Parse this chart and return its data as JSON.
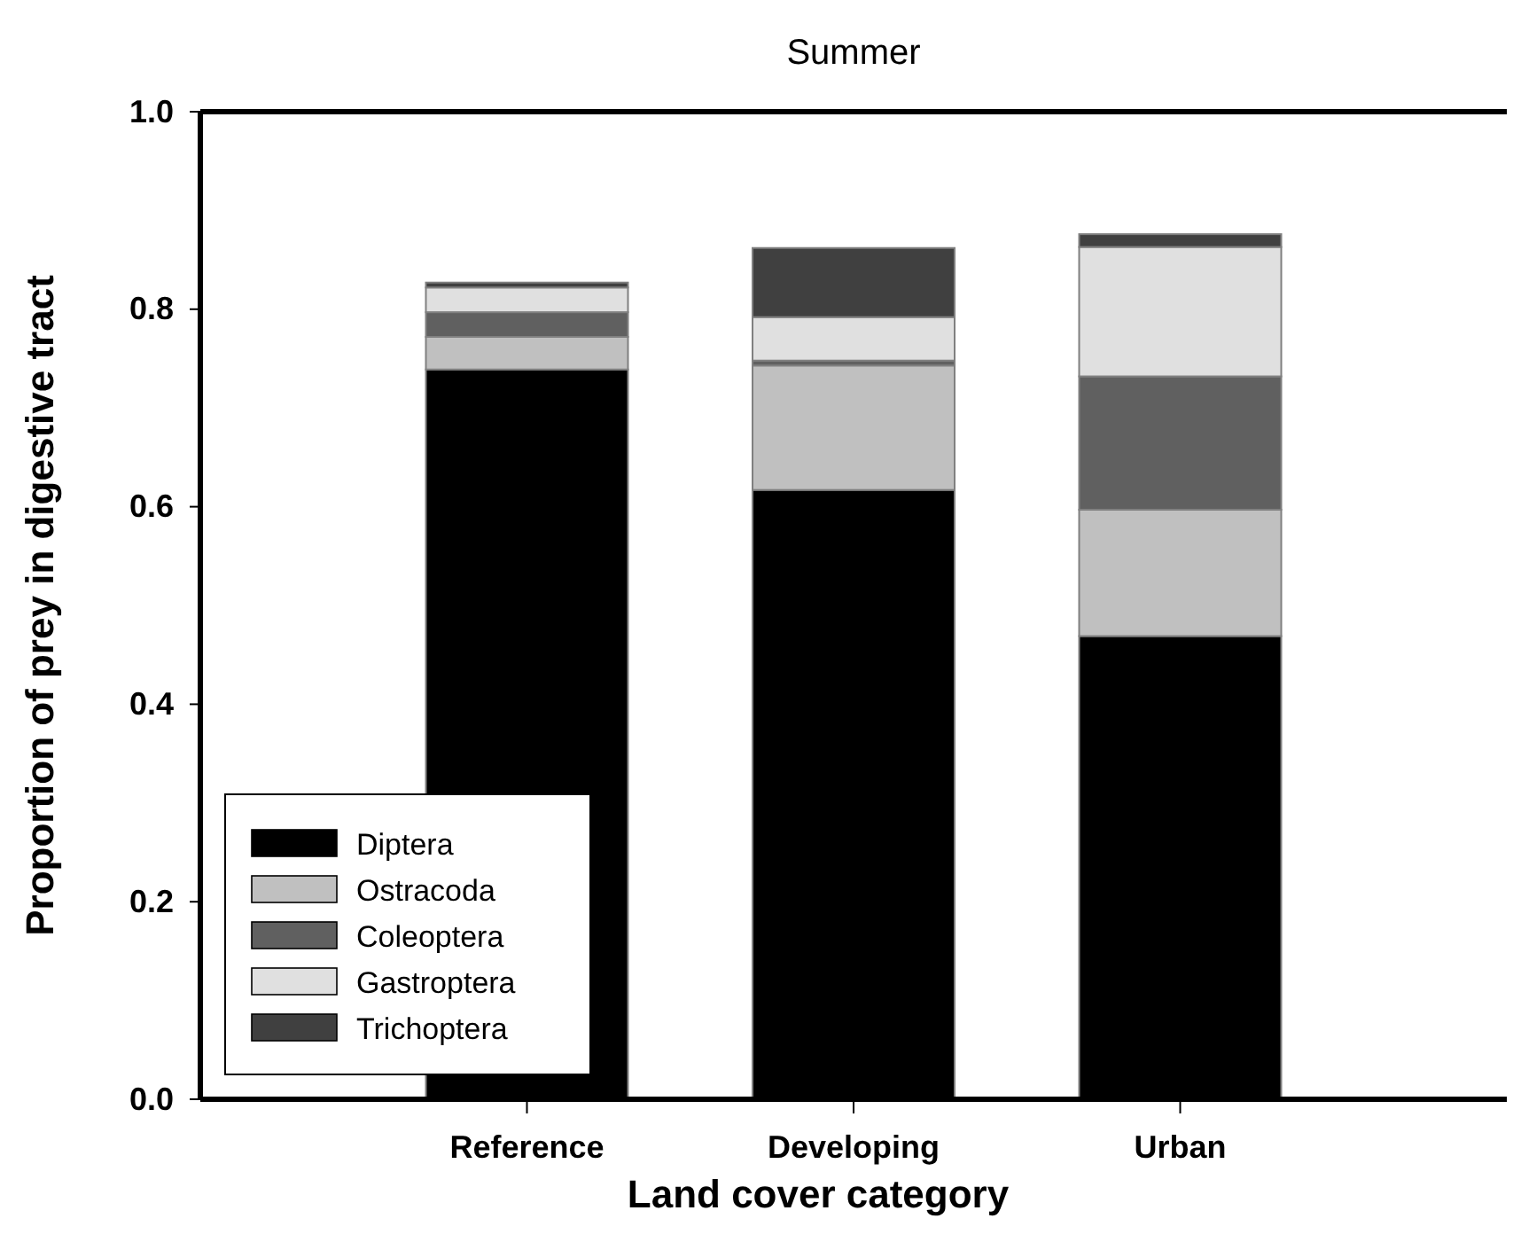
{
  "chart_data": {
    "type": "bar",
    "title": "Summer",
    "xlabel": "Land cover category",
    "ylabel": "Proportion of prey in digestive tract",
    "categories": [
      "Reference",
      "Developing",
      "Urban"
    ],
    "stacked": true,
    "legend": "bottom left",
    "ylim": [
      0,
      1
    ],
    "yticks": [
      {
        "value": 0,
        "label": "0.0"
      },
      {
        "value": 0.2,
        "label": "0.2"
      },
      {
        "value": 0.4,
        "label": "0.4"
      },
      {
        "value": 0.6,
        "label": "0.6"
      },
      {
        "value": 0.8,
        "label": "0.8"
      },
      {
        "value": 1,
        "label": "1.0"
      }
    ],
    "series": [
      {
        "name": "Diptera",
        "color": "#000000",
        "values": [
          0.739,
          0.617,
          0.469
        ]
      },
      {
        "name": "Ostracoda",
        "color": "#c0c0c0",
        "values": [
          0.033,
          0.126,
          0.128
        ]
      },
      {
        "name": "Coleoptera",
        "color": "#606060",
        "values": [
          0.025,
          0.005,
          0.135
        ]
      },
      {
        "name": "Gastroptera",
        "color": "#e0e0e0",
        "values": [
          0.025,
          0.044,
          0.131
        ]
      },
      {
        "name": "Trichoptera",
        "color": "#404040",
        "values": [
          0.005,
          0.07,
          0.013
        ]
      }
    ]
  }
}
